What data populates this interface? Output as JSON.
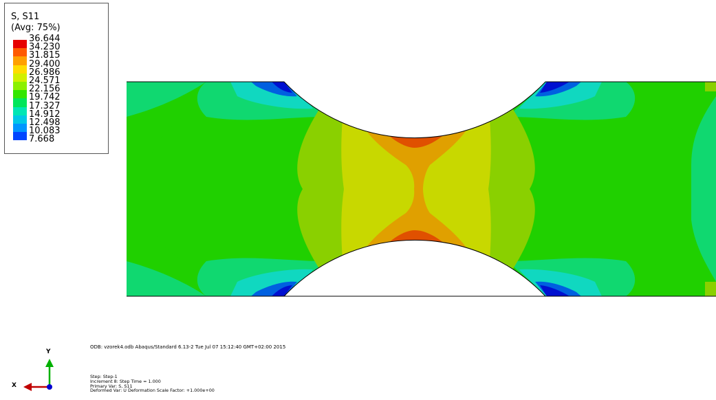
{
  "legend": {
    "variable": "S, S11",
    "averaging": "(Avg: 75%)",
    "values": [
      "36.644",
      "34.230",
      "31.815",
      "29.400",
      "26.986",
      "24.571",
      "22.156",
      "19.742",
      "17.327",
      "14.912",
      "12.498",
      "10.083",
      "7.668"
    ],
    "colors": [
      "#e60000",
      "#ff5a00",
      "#ffa000",
      "#ffdc00",
      "#d2f000",
      "#8cf000",
      "#32e600",
      "#00e65a",
      "#00e6b4",
      "#00c8e6",
      "#0096ff",
      "#0046ff",
      "#0000c8"
    ]
  },
  "odb_info": "ODB: vzorek4.odb    Abaqus/Standard 6.13-2    Tue Jul 07 15:12:40 GMT+02:00 2015",
  "step_info": {
    "step": "Step: Step-1",
    "increment": "Increment     8: Step Time =    1.000",
    "primary_var": "Primary Var: S, S11",
    "deformed_var": "Deformed Var: U   Deformation Scale Factor: +1.000e+00"
  },
  "triad": {
    "x_label": "X",
    "y_label": "Y"
  },
  "contour_colors": {
    "green": "#20d000",
    "teal": "#10d870",
    "cyan": "#10d8c0",
    "lime": "#8ad000",
    "yellow": "#c8d800",
    "orange": "#e0a000",
    "redorange": "#e05000",
    "red": "#e00000",
    "blue": "#0060e0",
    "darkblue": "#0010d0"
  }
}
